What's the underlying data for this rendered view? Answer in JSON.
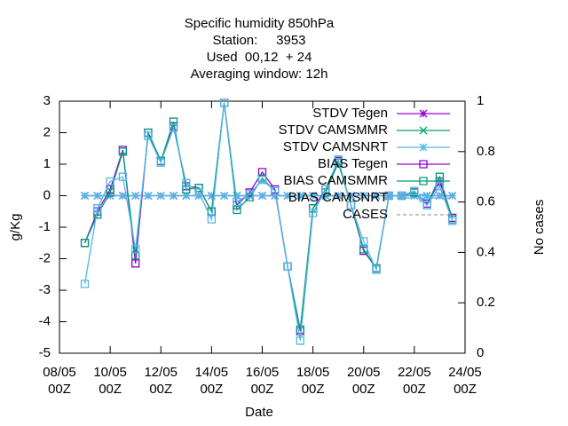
{
  "chart_data": {
    "type": "line",
    "title": [
      "Specific humidity 850hPa",
      "Station:     3953",
      "Used  00,12  + 24",
      "Averaging window: 12h"
    ],
    "xlabel": "Date",
    "ylabel": "g/Kg",
    "y2label": "No cases",
    "x": [
      "09/05 00Z",
      "09/05 12Z",
      "10/05 00Z",
      "10/05 12Z",
      "11/05 00Z",
      "11/05 12Z",
      "12/05 00Z",
      "12/05 12Z",
      "13/05 00Z",
      "13/05 12Z",
      "14/05 00Z",
      "14/05 12Z",
      "15/05 00Z",
      "15/05 12Z",
      "16/05 00Z",
      "16/05 12Z",
      "17/05 00Z",
      "17/05 12Z",
      "18/05 00Z",
      "18/05 12Z",
      "19/05 00Z",
      "19/05 12Z",
      "20/05 00Z",
      "20/05 12Z",
      "21/05 00Z",
      "21/05 12Z",
      "22/05 00Z",
      "22/05 12Z",
      "23/05 00Z",
      "23/05 12Z"
    ],
    "xlim": [
      "08/05 00Z",
      "24/05 00Z"
    ],
    "xticks": [
      "08/05 00Z",
      "10/05 00Z",
      "12/05 00Z",
      "14/05 00Z",
      "16/05 00Z",
      "18/05 00Z",
      "20/05 00Z",
      "22/05 00Z",
      "24/05 00Z"
    ],
    "ylim": [
      -5,
      3
    ],
    "yticks": [
      -5,
      -4,
      -3,
      -2,
      -1,
      0,
      1,
      2,
      3
    ],
    "y2lim": [
      0,
      1
    ],
    "y2ticks": [
      0,
      0.2,
      0.4,
      0.6,
      0.8,
      1
    ],
    "legend": "top-right",
    "series": [
      {
        "name": "STDV Tegen",
        "color": "#9400d3",
        "marker": "asterisk",
        "values": [
          0,
          0,
          0,
          0,
          0,
          0,
          0,
          0,
          0,
          0,
          0,
          0,
          0,
          0,
          0,
          0,
          0,
          0,
          0,
          0,
          0,
          0,
          0,
          0,
          0,
          0,
          0,
          0,
          0,
          0
        ]
      },
      {
        "name": "STDV CAMSMMR",
        "color": "#009e73",
        "marker": "cross",
        "values": [
          0,
          0,
          0,
          0,
          0,
          0,
          0,
          0,
          0,
          0,
          0,
          0,
          0,
          0,
          0,
          0,
          0,
          0,
          0,
          0,
          0,
          0,
          0,
          0,
          0,
          0,
          0,
          0,
          0,
          0
        ]
      },
      {
        "name": "STDV CAMSNRT",
        "color": "#56b4e9",
        "marker": "star",
        "values": [
          0,
          0,
          0,
          0,
          0,
          0,
          0,
          0,
          0,
          0,
          0,
          0,
          0,
          0,
          0,
          0,
          0,
          0,
          0,
          0,
          0,
          0,
          0,
          0,
          0,
          0,
          0,
          0,
          0,
          0
        ]
      },
      {
        "name": "BIAS Tegen",
        "color": "#9400d3",
        "marker": "square",
        "values": [
          -1.5,
          -0.5,
          0.2,
          1.45,
          -2.15,
          2.0,
          1.1,
          2.2,
          0.3,
          0.25,
          -0.5,
          2.95,
          -0.3,
          0.1,
          0.75,
          0.2,
          -2.25,
          -4.3,
          -0.4,
          0.2,
          1.1,
          -0.3,
          -1.75,
          -2.3,
          0.0,
          0.0,
          0.1,
          -0.25,
          0.45,
          -0.7
        ]
      },
      {
        "name": "BIAS CAMSMMR",
        "color": "#009e73",
        "marker": "square",
        "values": [
          -1.5,
          -0.6,
          0.1,
          1.4,
          -1.9,
          2.0,
          1.1,
          2.35,
          0.2,
          0.25,
          -0.5,
          2.95,
          -0.45,
          -0.05,
          0.55,
          0.15,
          -2.25,
          -4.25,
          -0.4,
          0.1,
          1.05,
          -0.3,
          -1.7,
          -2.3,
          0.0,
          0.0,
          0.1,
          -0.3,
          0.6,
          -0.75
        ]
      },
      {
        "name": "BIAS CAMSNRT",
        "color": "#56b4e9",
        "marker": "square",
        "values": [
          -2.8,
          -0.4,
          0.45,
          0.6,
          -1.7,
          1.9,
          1.05,
          2.15,
          0.4,
          0.1,
          -0.75,
          2.95,
          -0.2,
          0.05,
          0.5,
          0.15,
          -2.25,
          -4.6,
          -0.55,
          0.2,
          1.15,
          -0.3,
          -1.45,
          -2.35,
          0.0,
          0.0,
          0.15,
          -0.3,
          0.3,
          -0.8
        ]
      },
      {
        "name": "CASES",
        "color": "#a0a0a0",
        "dashed": true,
        "axis": "y2",
        "values": [
          null,
          null,
          null,
          null,
          null,
          null,
          null,
          null,
          null,
          null,
          null,
          null,
          null,
          null,
          null,
          null,
          null,
          null,
          null,
          null,
          null,
          null,
          null,
          null,
          null,
          null,
          null,
          null,
          null,
          null
        ]
      }
    ]
  }
}
